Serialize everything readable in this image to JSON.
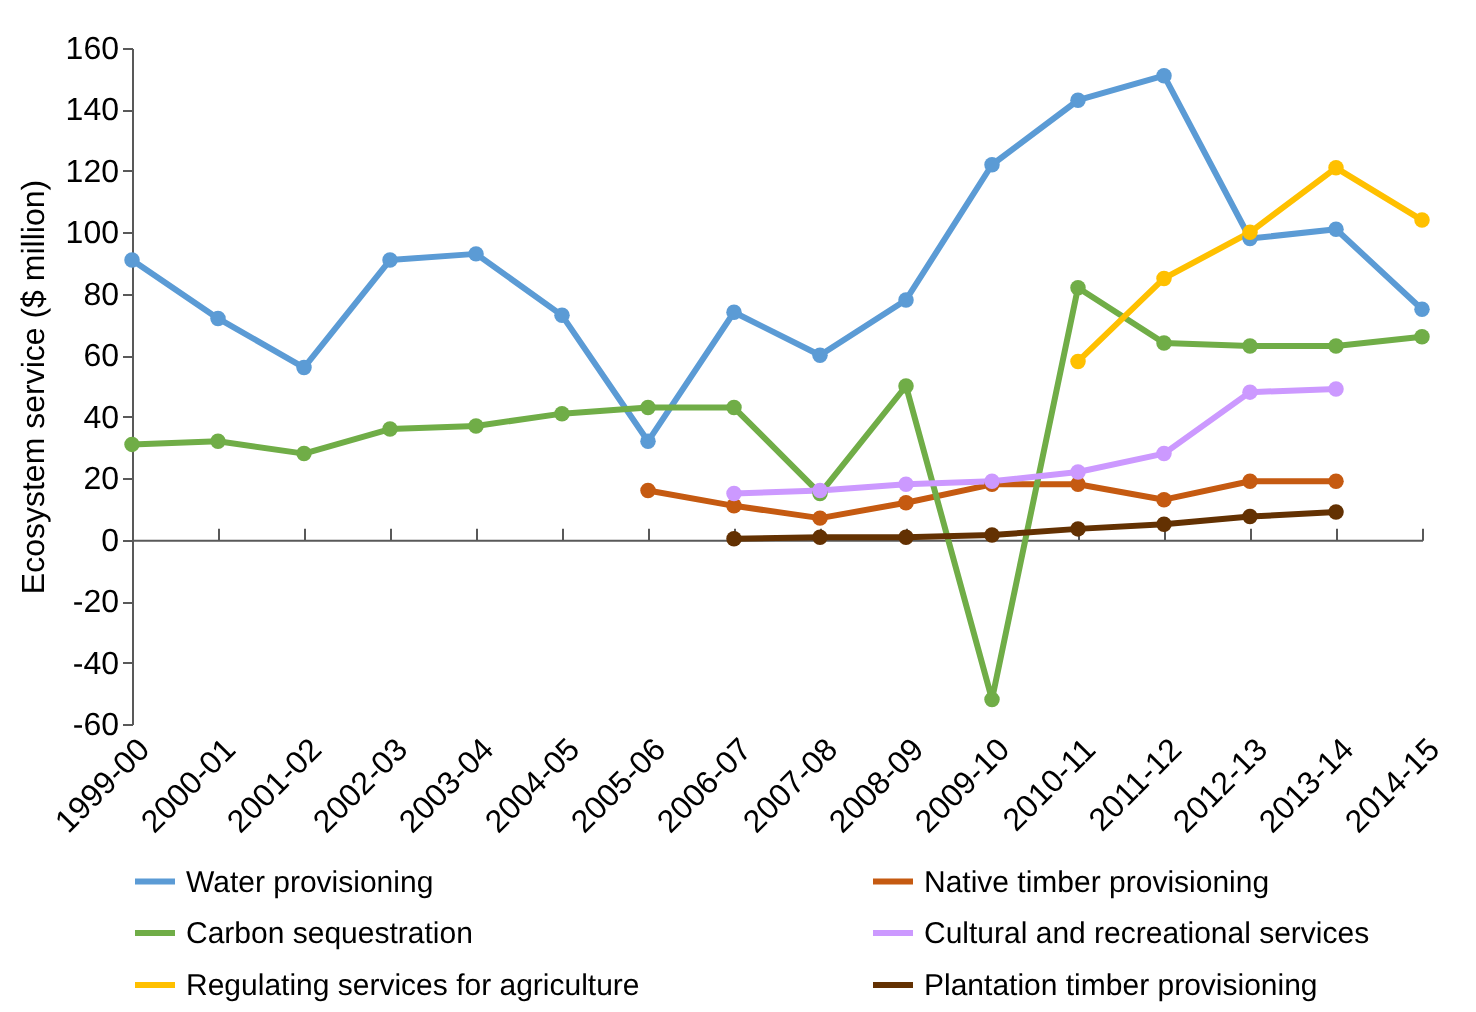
{
  "chart_data": {
    "type": "line",
    "ylabel": "Ecosystem service ($ million)",
    "categories": [
      "1999-00",
      "2000-01",
      "2001-02",
      "2002-03",
      "2003-04",
      "2004-05",
      "2005-06",
      "2006-07",
      "2007-08",
      "2008-09",
      "2009-10",
      "2010-11",
      "2011-12",
      "2012-13",
      "2013-14",
      "2014-15"
    ],
    "series": [
      {
        "name": "Water provisioning",
        "color": "#5b9bd5",
        "values": [
          91,
          72,
          56,
          91,
          93,
          73,
          32,
          74,
          60,
          78,
          122,
          143,
          151,
          98,
          101,
          75
        ]
      },
      {
        "name": "Native timber provisioning",
        "color": "#c55a11",
        "values": [
          null,
          null,
          null,
          null,
          null,
          null,
          16,
          11,
          7,
          12,
          18,
          18,
          13,
          19,
          19,
          null
        ]
      },
      {
        "name": "Carbon sequestration",
        "color": "#70ad47",
        "values": [
          31,
          32,
          28,
          36,
          37,
          41,
          43,
          43,
          15,
          50,
          -52,
          82,
          64,
          63,
          63,
          66
        ]
      },
      {
        "name": "Cultural and recreational services",
        "color": "#cc99ff",
        "values": [
          null,
          null,
          null,
          null,
          null,
          null,
          null,
          15,
          16,
          18,
          19,
          22,
          28,
          48,
          49,
          null
        ]
      },
      {
        "name": "Regulating services for agriculture",
        "color": "#ffc000",
        "values": [
          null,
          null,
          null,
          null,
          null,
          null,
          null,
          null,
          null,
          null,
          null,
          58,
          85,
          100,
          121,
          104
        ]
      },
      {
        "name": "Plantation timber provisioning",
        "color": "#633102",
        "values": [
          null,
          null,
          null,
          null,
          null,
          null,
          null,
          0.3,
          0.8,
          0.8,
          1.5,
          3.5,
          5,
          7.5,
          9,
          null
        ]
      }
    ],
    "ylim": [
      -60,
      160
    ],
    "yticks": [
      -60,
      -40,
      -20,
      0,
      20,
      40,
      60,
      80,
      100,
      120,
      140,
      160
    ],
    "legend": "bottom",
    "marker": "circle",
    "line_style": "solid"
  }
}
